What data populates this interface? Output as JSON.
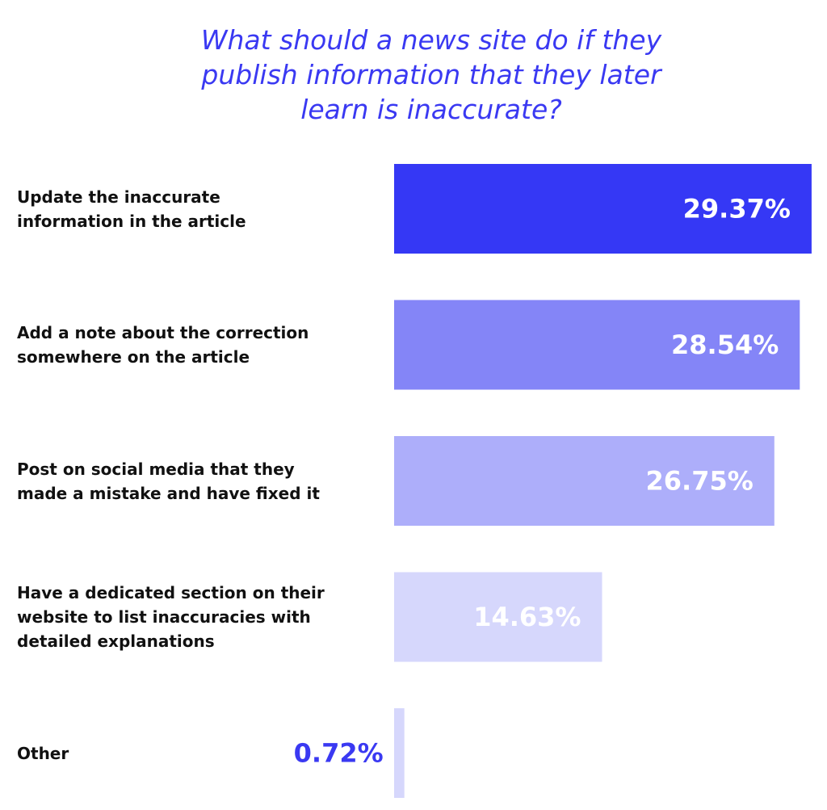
{
  "title_lines": [
    "What should a news site do if they",
    "publish information that they later",
    "learn is inaccurate?"
  ],
  "chart_data": {
    "type": "bar",
    "orientation": "horizontal",
    "title": "What should a news site do if they publish information that they later learn is inaccurate?",
    "categories": [
      "Update the inaccurate information in the article",
      "Add a note about the correction somewhere on the article",
      "Post on social media that they made a mistake and have fixed it",
      "Have a dedicated section on their website to list inaccuracies with detailed explanations",
      "Other"
    ],
    "category_lines": [
      [
        "Update the inaccurate",
        "information in the article"
      ],
      [
        "Add a note about the correction",
        "somewhere on the article"
      ],
      [
        "Post on social media that they",
        "made a mistake and have fixed it"
      ],
      [
        "Have a dedicated section on their",
        "website to list inaccuracies with",
        "detailed explanations"
      ],
      [
        "Other"
      ]
    ],
    "values": [
      29.37,
      28.54,
      26.75,
      14.63,
      0.72
    ],
    "value_labels": [
      "29.37%",
      "28.54%",
      "26.75%",
      "14.63%",
      "0.72%"
    ],
    "unit": "%",
    "bar_colors": [
      "#3538f5",
      "#8485f7",
      "#adaefa",
      "#d6d7fc",
      "#d6d7fc"
    ],
    "value_label_colors": [
      "#ffffff",
      "#ffffff",
      "#ffffff",
      "#ffffff",
      "#3a39f2"
    ],
    "grid": false,
    "legend": "none"
  }
}
